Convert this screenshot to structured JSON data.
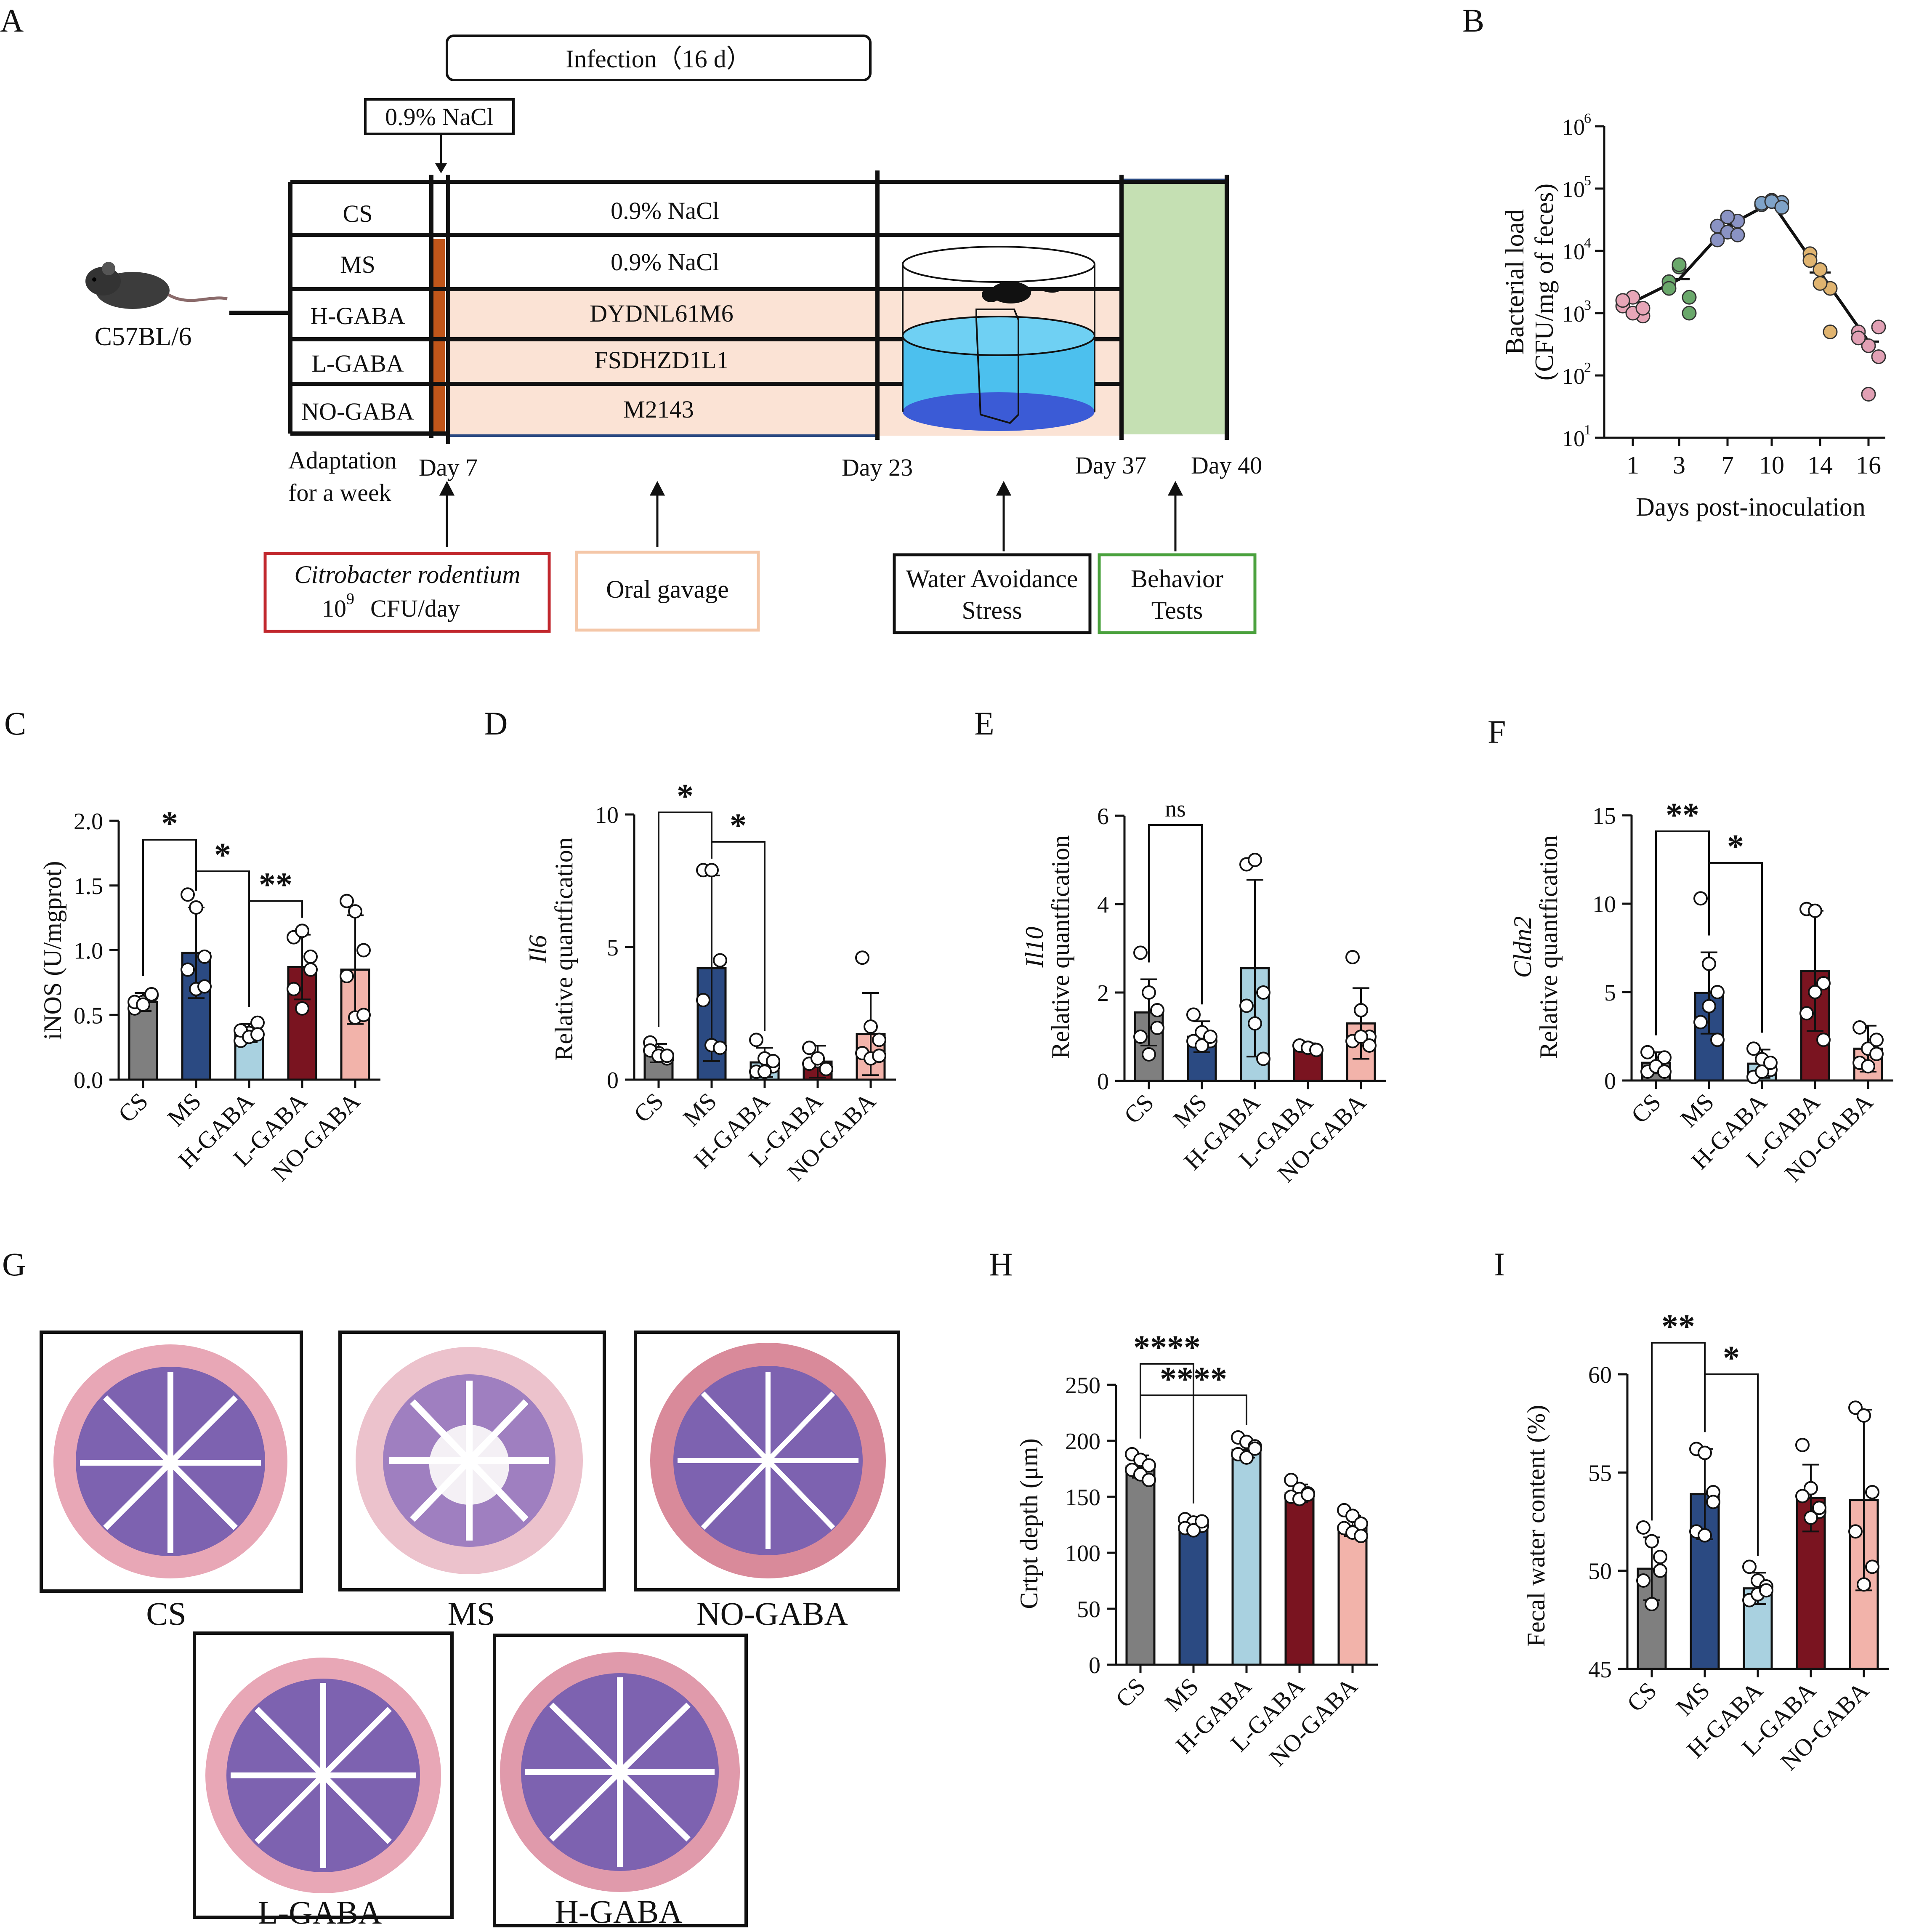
{
  "panel_letters": [
    "A",
    "B",
    "C",
    "D",
    "E",
    "F",
    "G",
    "H",
    "I"
  ],
  "colors": {
    "CS": "#7f7f7f",
    "MS": "#2b4a82",
    "H-GABA": "#a9d1e0",
    "L-GABA": "#7a1420",
    "NO-GABA": "#f2b3aa",
    "gavage_fill": "#fbe3d5",
    "nacl_bar": "#c0561a",
    "wa_water": "#4cc0ee",
    "wa_bottom": "#3b5bd6",
    "behavior_fill": "#c5e0b3",
    "citro_border": "#c1272d",
    "gavage_border": "#f4c7a8",
    "behavior_border": "#4aa13d",
    "he_stroma": "#e8a7b6",
    "he_crypt": "#7d62b0"
  },
  "panel_A": {
    "infection_label": "Infection（16 d）",
    "nacl_box": "0.9%  NaCl",
    "strain": "C57BL/6",
    "rows": [
      {
        "group": "CS",
        "treatment": "0.9%  NaCl"
      },
      {
        "group": "MS",
        "treatment": "0.9%  NaCl"
      },
      {
        "group": "H-GABA",
        "treatment": "DYDNL61M6"
      },
      {
        "group": "L-GABA",
        "treatment": "FSDHZD1L1"
      },
      {
        "group": "NO-GABA",
        "treatment": "M2143"
      }
    ],
    "timeline": {
      "adaptation": [
        "Adaptation",
        "for a week"
      ],
      "day7": "Day 7",
      "day23": "Day 23",
      "day37": "Day 37",
      "day40": "Day 40"
    },
    "boxes": {
      "citro_line1": "Citrobacter rodentium",
      "citro_line2_a": "10",
      "citro_line2_sup": "9",
      "citro_line2_b": "CFU/day",
      "gavage": "Oral gavage",
      "wa_line1": "Water Avoidance",
      "wa_line2": "Stress",
      "bt_line1": "Behavior",
      "bt_line2": "Tests"
    }
  },
  "panel_G": {
    "labels": [
      "CS",
      "MS",
      "NO-GABA",
      "L-GABA",
      "H-GABA"
    ]
  },
  "chart_data": [
    {
      "id": "B",
      "type": "scatter",
      "xlabel": "Days post-inoculation",
      "ylabel_lines": [
        "Bacterial load",
        "(CFU/mg of feces)"
      ],
      "yscale": "log",
      "ylim": [
        10,
        1000000
      ],
      "y_ticks": [
        {
          "base": "10",
          "exp": "1"
        },
        {
          "base": "10",
          "exp": "2"
        },
        {
          "base": "10",
          "exp": "3"
        },
        {
          "base": "10",
          "exp": "4"
        },
        {
          "base": "10",
          "exp": "5"
        },
        {
          "base": "10",
          "exp": "6"
        }
      ],
      "categories": [
        "1",
        "3",
        "7",
        "10",
        "14",
        "16"
      ],
      "point_colors": [
        "#e7a6b8",
        "#6aa86b",
        "#8a93c4",
        "#7fa3c8",
        "#e0b470",
        "#e1a0b4"
      ],
      "means": [
        1500,
        3500,
        25000,
        60000,
        4500,
        350
      ],
      "points": [
        [
          1300,
          1800,
          900,
          1600,
          1000,
          1200
        ],
        [
          3200,
          5500,
          1800,
          2500,
          6000,
          1000
        ],
        [
          25000,
          20000,
          30000,
          15000,
          35000,
          18000
        ],
        [
          55000,
          65000,
          60000,
          58000,
          62000,
          50000
        ],
        [
          9000,
          5000,
          2500,
          7000,
          3000,
          500
        ],
        [
          500,
          300,
          200,
          400,
          50,
          600
        ]
      ]
    },
    {
      "id": "C",
      "type": "bar",
      "ylabel": "iNOS (U/mgprot)",
      "ylim": [
        0,
        2.0
      ],
      "y_ticks": [
        "0.0",
        "0.5",
        "1.0",
        "1.5",
        "2.0"
      ],
      "y_tick_values": [
        0,
        0.5,
        1,
        1.5,
        2
      ],
      "categories": [
        "CS",
        "MS",
        "H-GABA",
        "L-GABA",
        "NO-GABA"
      ],
      "values": [
        0.6,
        0.98,
        0.36,
        0.87,
        0.85
      ],
      "errors": [
        0.07,
        0.35,
        0.07,
        0.25,
        0.42
      ],
      "points": [
        [
          0.55,
          0.6,
          0.65,
          0.6,
          0.58,
          0.66
        ],
        [
          1.43,
          1.33,
          0.95,
          0.85,
          0.7,
          0.72
        ],
        [
          0.3,
          0.36,
          0.44,
          0.38,
          0.33,
          0.35
        ],
        [
          1.1,
          1.15,
          0.95,
          0.7,
          0.55,
          0.85
        ],
        [
          1.38,
          1.3,
          1.0,
          0.8,
          0.48,
          0.5
        ]
      ],
      "significance": [
        {
          "a": 0,
          "b": 1,
          "label": "*"
        },
        {
          "a": 1,
          "b": 2,
          "label": "*"
        },
        {
          "a": 2,
          "b": 3,
          "label": "**"
        }
      ]
    },
    {
      "id": "D",
      "type": "bar",
      "ylabel": "Relative quantfication",
      "ylabel_gene": "Il6",
      "ylim": [
        0,
        10
      ],
      "y_ticks": [
        "0",
        "5",
        "10"
      ],
      "y_tick_values": [
        0,
        5,
        10
      ],
      "categories": [
        "CS",
        "MS",
        "H-GABA",
        "L-GABA",
        "NO-GABA"
      ],
      "values": [
        1.0,
        4.2,
        0.65,
        0.68,
        1.72
      ],
      "errors": [
        0.35,
        3.5,
        0.55,
        0.6,
        1.55
      ],
      "points": [
        [
          1.4,
          1.0,
          0.8,
          1.1,
          0.9,
          0.9
        ],
        [
          7.9,
          7.9,
          4.5,
          3.0,
          1.3,
          1.2
        ],
        [
          1.5,
          0.8,
          0.5,
          0.3,
          0.3,
          0.7
        ],
        [
          1.2,
          0.7,
          0.4,
          0.6,
          0.8,
          0.4
        ],
        [
          4.6,
          2.0,
          1.5,
          1.0,
          0.8,
          0.9
        ]
      ],
      "significance": [
        {
          "a": 0,
          "b": 1,
          "label": "*"
        },
        {
          "a": 1,
          "b": 2,
          "label": "*"
        }
      ]
    },
    {
      "id": "E",
      "type": "bar",
      "ylabel": "Relative quantfication",
      "ylabel_gene": "Il10",
      "ylim": [
        0,
        6
      ],
      "y_ticks": [
        "0",
        "2",
        "4",
        "6"
      ],
      "y_tick_values": [
        0,
        2,
        4,
        6
      ],
      "categories": [
        "CS",
        "MS",
        "H-GABA",
        "L-GABA",
        "NO-GABA"
      ],
      "values": [
        1.55,
        1.0,
        2.55,
        0.75,
        1.3
      ],
      "errors": [
        0.75,
        0.35,
        2.0,
        0.1,
        0.8
      ],
      "points": [
        [
          2.9,
          2.0,
          1.2,
          1.0,
          0.6,
          1.6
        ],
        [
          1.5,
          1.1,
          0.9,
          0.9,
          0.8,
          1.0
        ],
        [
          4.9,
          5.0,
          2.0,
          1.7,
          1.3,
          0.5
        ],
        [
          0.8,
          0.75,
          0.7,
          0.8,
          0.75,
          0.7
        ],
        [
          2.8,
          1.6,
          1.0,
          0.9,
          1.0,
          0.8
        ]
      ],
      "significance": [
        {
          "a": 0,
          "b": 1,
          "label": "ns"
        }
      ]
    },
    {
      "id": "F",
      "type": "bar",
      "ylabel": "Relative quantfication",
      "ylabel_gene": "Cldn2",
      "ylim": [
        0,
        15
      ],
      "y_ticks": [
        "0",
        "5",
        "10",
        "15"
      ],
      "y_tick_values": [
        0,
        5,
        10,
        15
      ],
      "categories": [
        "CS",
        "MS",
        "H-GABA",
        "L-GABA",
        "NO-GABA"
      ],
      "values": [
        1.0,
        4.95,
        0.95,
        6.2,
        1.8
      ],
      "errors": [
        0.6,
        2.3,
        0.8,
        3.4,
        1.3
      ],
      "points": [
        [
          1.6,
          0.8,
          1.3,
          0.5,
          0.8,
          0.5
        ],
        [
          10.3,
          6.6,
          5.0,
          3.3,
          4.2,
          2.3
        ],
        [
          1.8,
          1.2,
          0.6,
          0.2,
          0.5,
          1.0
        ],
        [
          9.7,
          9.6,
          5.5,
          3.8,
          5.0,
          2.3
        ],
        [
          3.0,
          1.8,
          1.5,
          1.0,
          0.8,
          2.3
        ]
      ],
      "significance": [
        {
          "a": 0,
          "b": 1,
          "label": "**"
        },
        {
          "a": 1,
          "b": 2,
          "label": "*"
        }
      ]
    },
    {
      "id": "H",
      "type": "bar",
      "ylabel": "Crtpt depth (μm)",
      "ylim": [
        0,
        250
      ],
      "y_ticks": [
        "0",
        "50",
        "100",
        "150",
        "200",
        "250"
      ],
      "y_tick_values": [
        0,
        50,
        100,
        150,
        200,
        250
      ],
      "categories": [
        "CS",
        "MS",
        "H-GABA",
        "L-GABA",
        "NO-GABA"
      ],
      "values": [
        177,
        124,
        192,
        153,
        124
      ],
      "errors": [
        10,
        5,
        7,
        8,
        9
      ],
      "points": [
        [
          188,
          183,
          178,
          174,
          170,
          165
        ],
        [
          130,
          127,
          124,
          122,
          120,
          128
        ],
        [
          203,
          199,
          195,
          188,
          185,
          193
        ],
        [
          165,
          157,
          153,
          150,
          148,
          152
        ],
        [
          138,
          133,
          126,
          122,
          118,
          115
        ]
      ],
      "significance": [
        {
          "a": 0,
          "b": 1,
          "label": "****"
        },
        {
          "a": 0,
          "b": 2,
          "label": "****"
        }
      ]
    },
    {
      "id": "I",
      "type": "bar",
      "ylabel": "Fecal water content  (%)",
      "ylim": [
        45,
        60
      ],
      "y_ticks": [
        "45",
        "50",
        "55",
        "60"
      ],
      "y_tick_values": [
        45,
        50,
        55,
        60
      ],
      "categories": [
        "CS",
        "MS",
        "H-GABA",
        "L-GABA",
        "NO-GABA"
      ],
      "values": [
        50.1,
        53.9,
        49.1,
        53.7,
        53.6
      ],
      "errors": [
        1.6,
        2.3,
        0.8,
        1.7,
        4.6
      ],
      "points": [
        [
          52.2,
          51.5,
          50.0,
          49.5,
          48.3,
          50.7
        ],
        [
          56.2,
          56.0,
          54.0,
          52.0,
          51.8,
          53.5
        ],
        [
          50.2,
          49.5,
          49.2,
          48.5,
          48.8,
          49.0
        ],
        [
          56.4,
          54.2,
          53.0,
          53.8,
          52.7,
          53.2
        ],
        [
          58.3,
          57.9,
          54.0,
          52.0,
          49.3,
          50.2
        ]
      ],
      "significance": [
        {
          "a": 0,
          "b": 1,
          "label": "**"
        },
        {
          "a": 1,
          "b": 2,
          "label": "*"
        }
      ]
    }
  ]
}
